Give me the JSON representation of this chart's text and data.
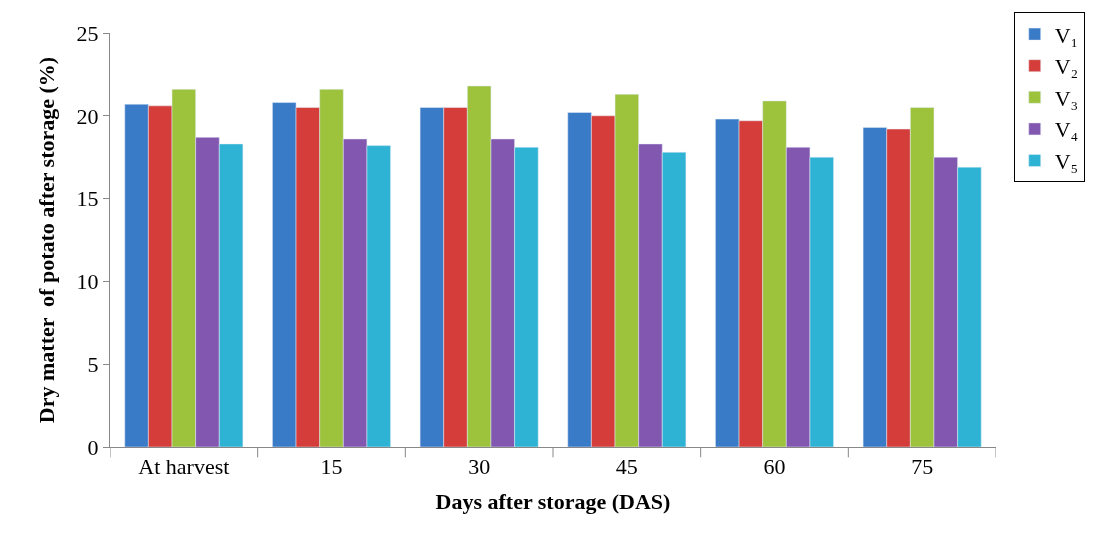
{
  "chart_data": {
    "type": "bar",
    "xlabel": "Days after storage (DAS)",
    "ylabel": "Dry matter  of potato after storage (%)",
    "categories": [
      "At harvest",
      "15",
      "30",
      "45",
      "60",
      "75"
    ],
    "series": [
      {
        "name": "V₁",
        "color": "#3a7bc8",
        "values": [
          20.7,
          20.8,
          20.5,
          20.2,
          19.8,
          19.3
        ]
      },
      {
        "name": "V₂",
        "color": "#d43d3a",
        "values": [
          20.6,
          20.5,
          20.5,
          20.0,
          19.7,
          19.2
        ]
      },
      {
        "name": "V₃",
        "color": "#9dc23c",
        "values": [
          21.6,
          21.6,
          21.8,
          21.3,
          20.9,
          20.5
        ]
      },
      {
        "name": "V₄",
        "color": "#8257b0",
        "values": [
          18.7,
          18.6,
          18.6,
          18.3,
          18.1,
          17.5
        ]
      },
      {
        "name": "V₅",
        "color": "#2fb3d4",
        "values": [
          18.3,
          18.2,
          18.1,
          17.8,
          17.5,
          16.9
        ]
      }
    ],
    "ylim": [
      0,
      25
    ],
    "yticks": [
      0,
      5,
      10,
      15,
      20,
      25
    ],
    "grid": false,
    "legend": "top right"
  }
}
